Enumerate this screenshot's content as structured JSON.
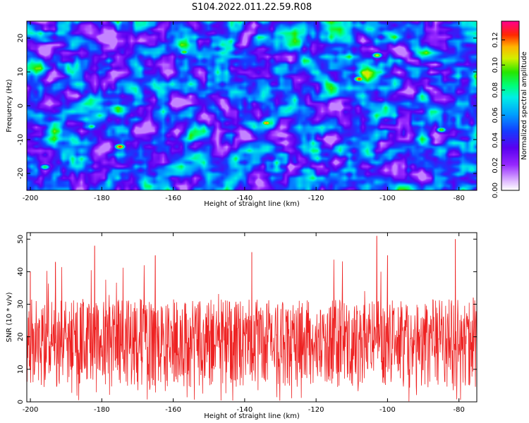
{
  "title": "S104.2022.011.22.59.R08",
  "chart_data": [
    {
      "type": "heatmap",
      "xlabel": "Height of straight line (km)",
      "ylabel": "Frequency (Hz)",
      "xlim": [
        -201,
        -75
      ],
      "ylim": [
        -25,
        25
      ],
      "xticks": [
        -200,
        -180,
        -160,
        -140,
        -120,
        -100,
        -80
      ],
      "yticks": [
        -20,
        -10,
        0,
        10,
        20
      ],
      "colorbar": {
        "label": "Normalized spectral amplitude",
        "range": [
          0,
          0.135
        ],
        "ticks": [
          0.0,
          0.02,
          0.04,
          0.06,
          0.08,
          0.1,
          0.12
        ],
        "tick_labels": [
          "0.00",
          "0.02",
          "0.04",
          "0.06",
          "0.08",
          "0.10",
          "0.12"
        ],
        "colormap": "gist_ncar-like (white, purple, blue, cyan, green, yellow, orange, red, pink)"
      },
      "peaks": [
        {
          "x": -108,
          "y": 8,
          "value": 0.13
        },
        {
          "x": -103,
          "y": 15,
          "value": 0.11
        },
        {
          "x": -175,
          "y": -12,
          "value": 0.13
        },
        {
          "x": -134,
          "y": -5,
          "value": 0.12
        },
        {
          "x": -85,
          "y": -7,
          "value": 0.1
        },
        {
          "x": -157,
          "y": 16,
          "value": 0.1
        },
        {
          "x": -183,
          "y": -6,
          "value": 0.09
        },
        {
          "x": -196,
          "y": -18,
          "value": 0.09
        }
      ]
    },
    {
      "type": "line",
      "xlabel": "Height of straight line (km)",
      "ylabel": "SNR (10 * v/v)",
      "xlim": [
        -201,
        -75
      ],
      "ylim": [
        0,
        52
      ],
      "xticks": [
        -200,
        -180,
        -160,
        -140,
        -120,
        -100,
        -80
      ],
      "yticks": [
        0,
        10,
        20,
        30,
        40,
        50
      ],
      "series": [
        {
          "color": "#ee2222",
          "mean": 18,
          "typical_range": [
            5,
            32
          ],
          "peaks": [
            {
              "x": -200,
              "y": 40
            },
            {
              "x": -193,
              "y": 43
            },
            {
              "x": -182,
              "y": 48
            },
            {
              "x": -165,
              "y": 45
            },
            {
              "x": -138,
              "y": 46
            },
            {
              "x": -103,
              "y": 51
            },
            {
              "x": -100,
              "y": 45
            },
            {
              "x": -81,
              "y": 50
            },
            {
              "x": -76,
              "y": 32
            }
          ]
        }
      ]
    }
  ]
}
